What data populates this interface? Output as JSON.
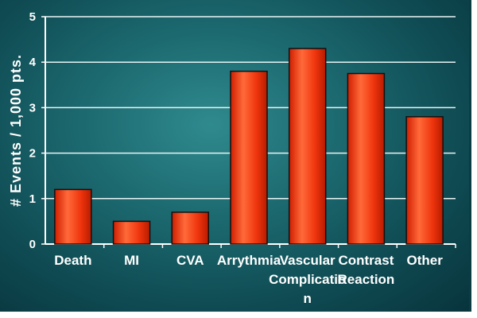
{
  "chart_data": {
    "type": "bar",
    "title": "",
    "xlabel": "",
    "ylabel": "# Events / 1,000 pts.",
    "categories": [
      [
        "Death"
      ],
      [
        "MI"
      ],
      [
        "CVA"
      ],
      [
        "Arrythmia"
      ],
      [
        "Vascular",
        "Complicatio",
        "n"
      ],
      [
        "Contrast",
        "Reaction"
      ],
      [
        "Other"
      ]
    ],
    "values": [
      1.2,
      0.5,
      0.7,
      3.8,
      4.3,
      3.75,
      2.8
    ],
    "ylim": [
      0,
      5
    ],
    "yticks": [
      "0",
      "1",
      "2",
      "3",
      "4",
      "5"
    ],
    "grid": true,
    "colors": {
      "bar": "#ee2a0a",
      "bar_highlight": "#ff7a4a",
      "bar_shadow": "#b81b00",
      "grid": "#e8f4f4",
      "background": "#1c6a70"
    }
  }
}
